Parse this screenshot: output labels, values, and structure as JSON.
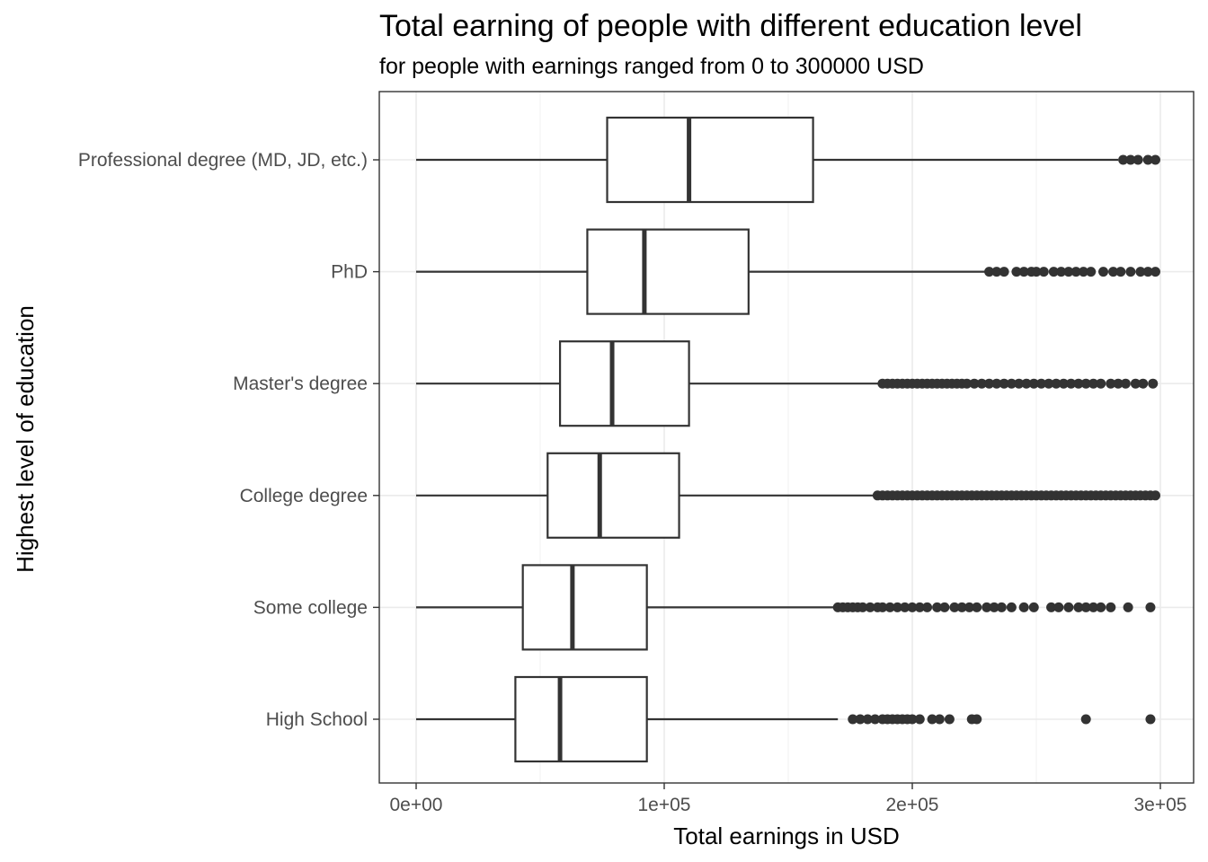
{
  "chart_data": {
    "type": "boxplot",
    "orientation": "horizontal",
    "title": "Total earning of people with different education level",
    "subtitle": "for people with earnings ranged from 0 to 300000 USD",
    "xlabel": "Total earnings in USD",
    "ylabel": "Highest level of education",
    "xlim": [
      -15000,
      315000
    ],
    "x_ticks": [
      0,
      100000,
      200000,
      300000
    ],
    "x_tick_labels": [
      "0e+00",
      "1e+05",
      "2e+05",
      "3e+05"
    ],
    "x_minor_ticks": [
      50000,
      150000,
      250000
    ],
    "grid": true,
    "categories": [
      "Professional degree (MD, JD, etc.)",
      "PhD",
      "Master's degree",
      "College degree",
      "Some college",
      "High School"
    ],
    "series": [
      {
        "category": "Professional degree (MD, JD, etc.)",
        "whisker_low": 0,
        "q1": 77000,
        "median": 110000,
        "q3": 160000,
        "whisker_high": 283000,
        "outliers": [
          285000,
          288000,
          291000,
          295000,
          298000
        ]
      },
      {
        "category": "PhD",
        "whisker_low": 0,
        "q1": 69000,
        "median": 92000,
        "q3": 134000,
        "whisker_high": 230000,
        "outliers": [
          231000,
          234000,
          237000,
          242000,
          245000,
          248000,
          250000,
          253000,
          257000,
          260000,
          263000,
          266000,
          269000,
          272000,
          277000,
          281000,
          284000,
          288000,
          292000,
          295000,
          298000
        ]
      },
      {
        "category": "Master's degree",
        "whisker_low": 0,
        "q1": 58000,
        "median": 79000,
        "q3": 110000,
        "whisker_high": 187000,
        "outliers": [
          188000,
          190000,
          192000,
          194000,
          196000,
          198000,
          200000,
          202000,
          204000,
          206000,
          208000,
          210000,
          212000,
          214000,
          216000,
          218000,
          220000,
          222000,
          225000,
          228000,
          231000,
          234000,
          237000,
          240000,
          243000,
          246000,
          249000,
          252000,
          255000,
          258000,
          261000,
          264000,
          267000,
          270000,
          273000,
          276000,
          280000,
          283000,
          286000,
          290000,
          293000,
          297000
        ]
      },
      {
        "category": "College degree",
        "whisker_low": 0,
        "q1": 53000,
        "median": 74000,
        "q3": 106000,
        "whisker_high": 185000,
        "outliers": [
          186000,
          188000,
          190000,
          192000,
          194000,
          196000,
          198000,
          200000,
          202000,
          204000,
          206000,
          208000,
          210000,
          212000,
          214000,
          216000,
          218000,
          220000,
          222000,
          224000,
          226000,
          228000,
          230000,
          232000,
          234000,
          236000,
          238000,
          240000,
          242000,
          244000,
          246000,
          248000,
          250000,
          252000,
          254000,
          256000,
          258000,
          260000,
          262000,
          264000,
          266000,
          268000,
          270000,
          272000,
          274000,
          276000,
          278000,
          280000,
          282000,
          284000,
          286000,
          288000,
          290000,
          292000,
          294000,
          296000,
          298000
        ]
      },
      {
        "category": "Some college",
        "whisker_low": 0,
        "q1": 43000,
        "median": 63000,
        "q3": 93000,
        "whisker_high": 169000,
        "outliers": [
          170000,
          172000,
          174000,
          176000,
          178000,
          180000,
          183000,
          186000,
          188000,
          191000,
          194000,
          197000,
          200000,
          203000,
          206000,
          210000,
          213000,
          217000,
          220000,
          223000,
          226000,
          230000,
          233000,
          236000,
          240000,
          245000,
          249000,
          256000,
          259000,
          263000,
          267000,
          270000,
          273000,
          276000,
          280000,
          287000,
          296000
        ]
      },
      {
        "category": "High School",
        "whisker_low": 0,
        "q1": 40000,
        "median": 58000,
        "q3": 93000,
        "whisker_high": 170000,
        "outliers": [
          176000,
          179000,
          182000,
          185000,
          188000,
          190000,
          192000,
          194000,
          196000,
          198000,
          200000,
          203000,
          208000,
          211000,
          215000,
          224000,
          226000,
          270000,
          296000
        ]
      }
    ]
  }
}
